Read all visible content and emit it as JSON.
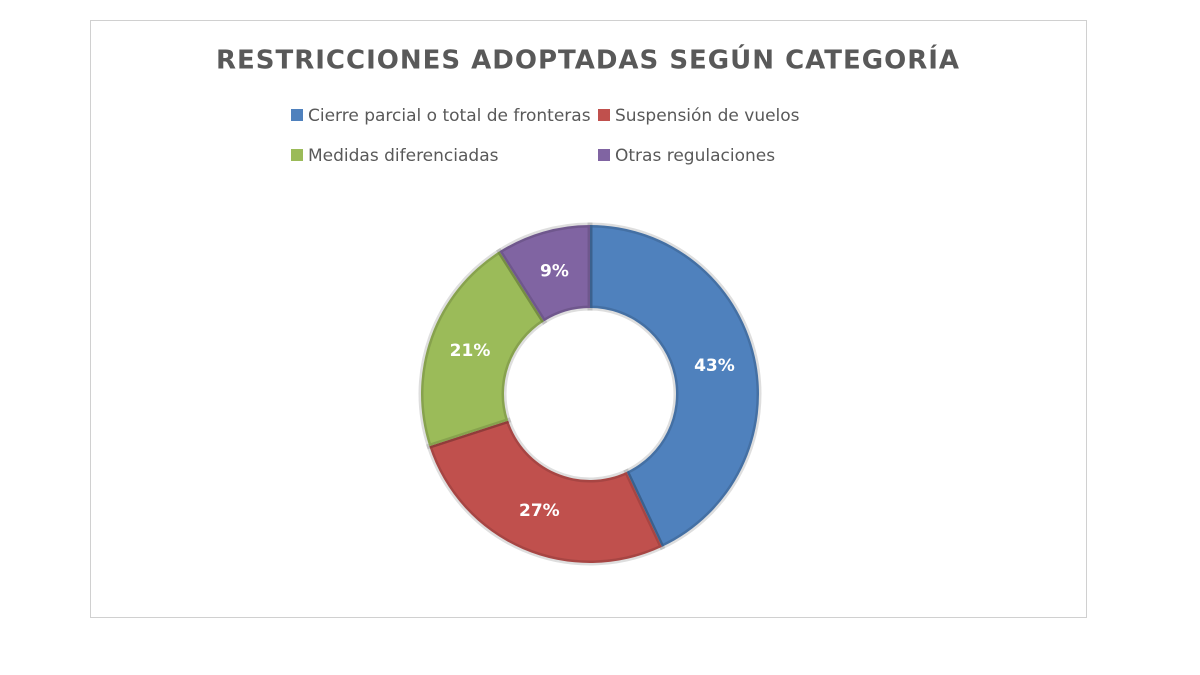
{
  "chart_data": {
    "type": "donut",
    "title": "RESTRICCIONES ADOPTADAS SEGÚN CATEGORÍA",
    "categories": [
      "Cierre parcial o total de fronteras",
      "Suspensión de vuelos",
      "Medidas diferenciadas",
      "Otras regulaciones"
    ],
    "values": [
      43,
      27,
      21,
      9
    ],
    "value_labels": [
      "43%",
      "27%",
      "21%",
      "9%"
    ],
    "colors": [
      "#4f81bd",
      "#c0504d",
      "#9bbb59",
      "#8064a2"
    ],
    "legend": "top"
  }
}
